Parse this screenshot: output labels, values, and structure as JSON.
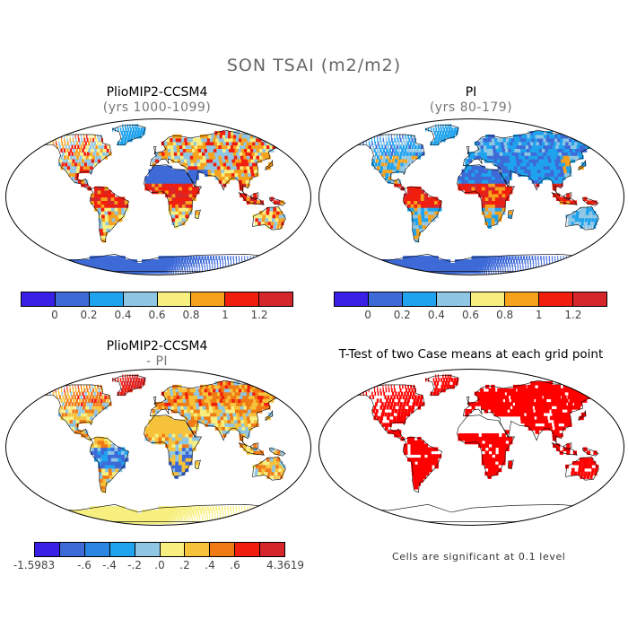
{
  "figure": {
    "title": "SON TSAI (m2/m2)"
  },
  "panels": [
    {
      "title": "PlioMIP2-CCSM4",
      "subtitle": "(yrs 1000-1099)"
    },
    {
      "title": "PI",
      "subtitle": "(yrs 80-179)"
    },
    {
      "title": "PlioMIP2-CCSM4",
      "subtitle": "- PI"
    },
    {
      "title": "T-Test of two Case means at each grid point",
      "subtitle": ""
    }
  ],
  "colorbar_top": {
    "colors": [
      "#3a1fe6",
      "#3e6ad8",
      "#1fa3ee",
      "#8fc6e4",
      "#f7f081",
      "#f6a21d",
      "#f11e0e",
      "#d5262c"
    ],
    "ticks": [
      "0",
      "0.2",
      "0.4",
      "0.6",
      "0.8",
      "1",
      "1.2"
    ]
  },
  "colorbar_diff": {
    "colors": [
      "#3a1fe6",
      "#3e6ad8",
      "#2a86e0",
      "#1fa3ee",
      "#8fc6e4",
      "#f7f081",
      "#f6c23a",
      "#f07a14",
      "#f11e0e",
      "#d5262c"
    ],
    "ticks": [
      "-1.5983",
      "-.6",
      "-.4",
      "-.2",
      ".0",
      ".2",
      ".4",
      ".6",
      "4.3619"
    ]
  },
  "note": "Cells are significant at 0.1 level",
  "colors": {
    "ocean": "#ffffff",
    "coast": "#000000"
  }
}
